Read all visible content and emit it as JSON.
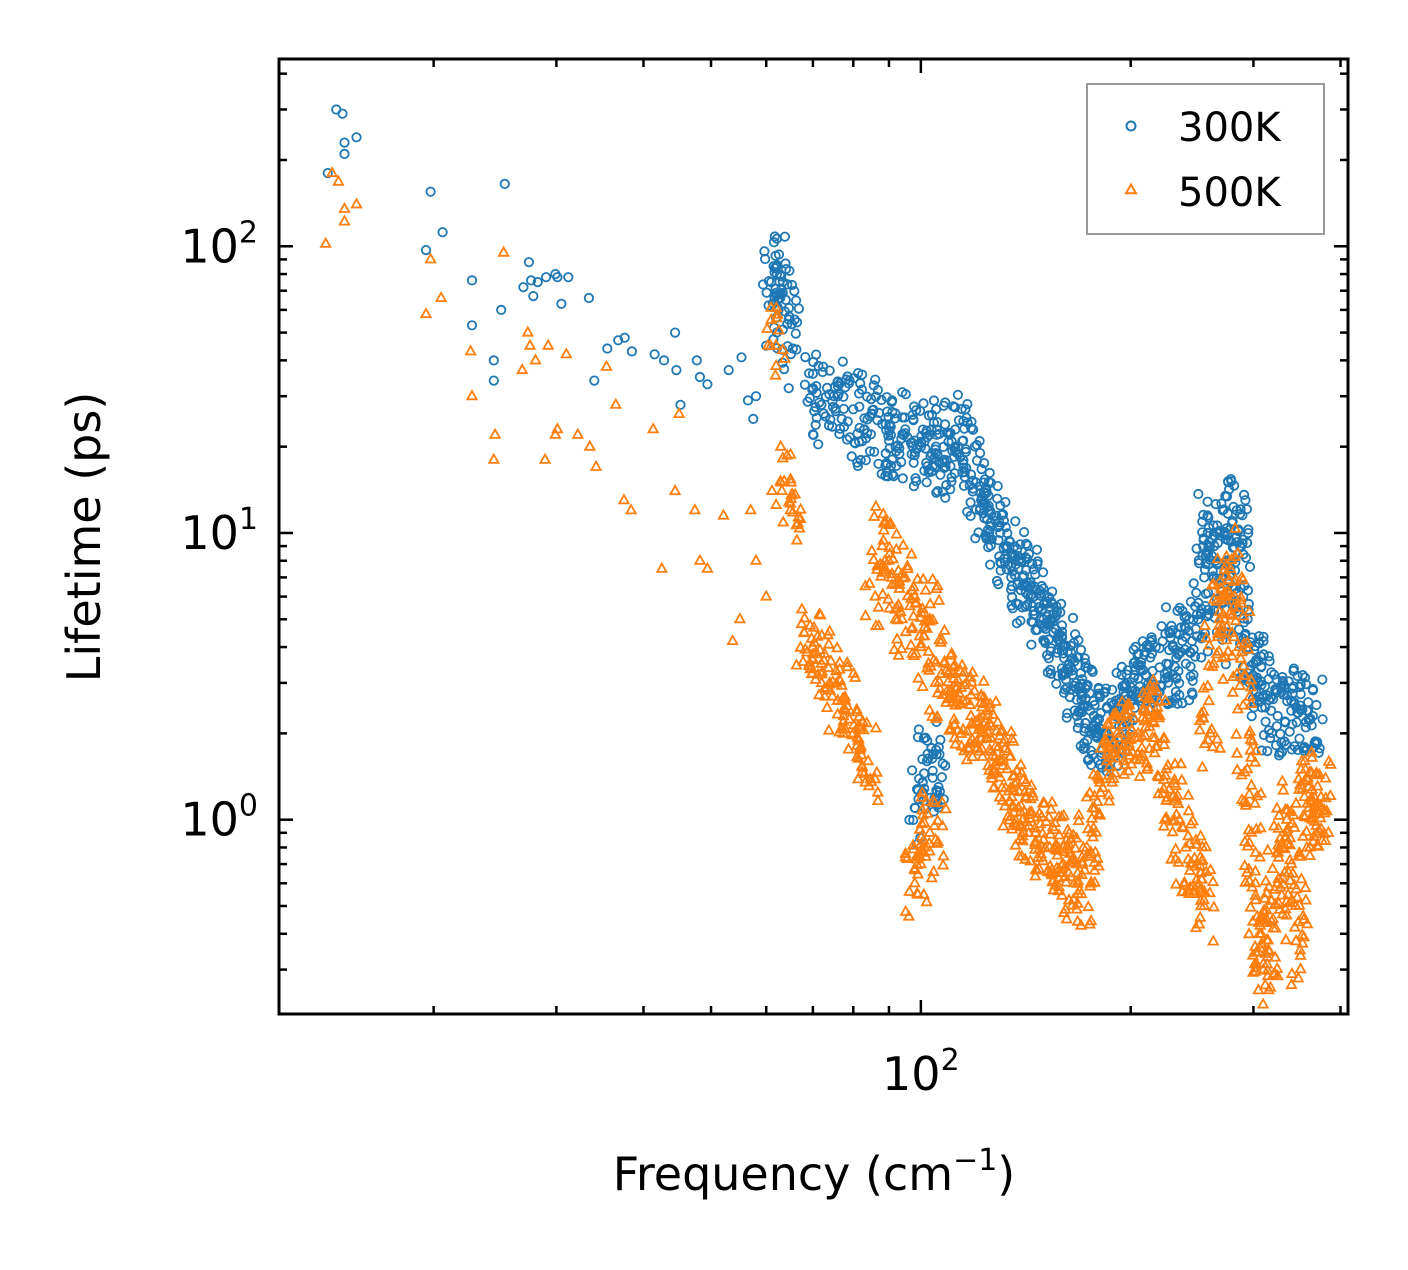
{
  "chart_data": {
    "type": "scatter",
    "xscale": "log",
    "yscale": "log",
    "xlabel": "Frequency (cm",
    "xlabel_exponent": "−1",
    "xlabel_suffix": ")",
    "ylabel": "Lifetime (ps)",
    "xlim": [
      12,
      410
    ],
    "ylim": [
      0.21,
      450
    ],
    "x_major_ticks": [
      {
        "value": 100,
        "base": "10",
        "exp": "2"
      }
    ],
    "y_major_ticks": [
      {
        "value": 1,
        "base": "10",
        "exp": "0"
      },
      {
        "value": 10,
        "base": "10",
        "exp": "1"
      },
      {
        "value": 100,
        "base": "10",
        "exp": "2"
      }
    ],
    "legend_position": "top-right",
    "series": [
      {
        "name": "300K",
        "color": "#1f77b4",
        "marker": "circle",
        "sample_points": [
          [
            14.1,
            180
          ],
          [
            14.5,
            300
          ],
          [
            14.8,
            290
          ],
          [
            14.9,
            230
          ],
          [
            14.9,
            210
          ],
          [
            15.5,
            240
          ],
          [
            19.5,
            97
          ],
          [
            19.8,
            155
          ],
          [
            20.6,
            112
          ],
          [
            22.7,
            76
          ],
          [
            22.7,
            53
          ],
          [
            24.4,
            40
          ],
          [
            24.4,
            34
          ],
          [
            25,
            60
          ],
          [
            25.3,
            165
          ],
          [
            26.9,
            72
          ],
          [
            27.4,
            88
          ],
          [
            27.6,
            76
          ],
          [
            27.8,
            67
          ],
          [
            28.2,
            75
          ],
          [
            29,
            78
          ],
          [
            29.9,
            80
          ],
          [
            30.1,
            78
          ],
          [
            30.5,
            63
          ],
          [
            31.2,
            78
          ],
          [
            33.4,
            66
          ],
          [
            34,
            34
          ],
          [
            35.5,
            44
          ],
          [
            36.8,
            47
          ],
          [
            37.6,
            48
          ],
          [
            38.5,
            43
          ],
          [
            41.5,
            42
          ],
          [
            42.8,
            40
          ],
          [
            44.4,
            50
          ],
          [
            44.6,
            37
          ],
          [
            45.2,
            28
          ],
          [
            47.7,
            40
          ],
          [
            48.2,
            35
          ],
          [
            49.4,
            33
          ],
          [
            53,
            37
          ],
          [
            55.3,
            41
          ],
          [
            56.5,
            29
          ],
          [
            57.5,
            25
          ],
          [
            58,
            30
          ],
          [
            60,
            45
          ],
          [
            61,
            75
          ],
          [
            62,
            85
          ],
          [
            62.5,
            60
          ],
          [
            64,
            65
          ],
          [
            65.5,
            44
          ],
          [
            70,
            32
          ],
          [
            72,
            28
          ],
          [
            75,
            30
          ],
          [
            77,
            25
          ],
          [
            80,
            27
          ],
          [
            83,
            23
          ],
          [
            85,
            26
          ],
          [
            88,
            24
          ],
          [
            90,
            21
          ],
          [
            92,
            20
          ],
          [
            95,
            23
          ],
          [
            98,
            21
          ],
          [
            100,
            20
          ],
          [
            103,
            22
          ],
          [
            105,
            19
          ],
          [
            108,
            18
          ],
          [
            110,
            22
          ],
          [
            112,
            20
          ],
          [
            115,
            21
          ],
          [
            118,
            16
          ],
          [
            120,
            15
          ],
          [
            122,
            13
          ],
          [
            125,
            12
          ],
          [
            128,
            11
          ],
          [
            130,
            10
          ],
          [
            133,
            9
          ],
          [
            135,
            8.5
          ],
          [
            138,
            7.5
          ],
          [
            140,
            7
          ],
          [
            142,
            6.5
          ],
          [
            145,
            6
          ],
          [
            148,
            5.5
          ],
          [
            150,
            5
          ],
          [
            153,
            4.8
          ],
          [
            155,
            4.5
          ],
          [
            158,
            4.2
          ],
          [
            160,
            3.8
          ],
          [
            163,
            3.5
          ],
          [
            165,
            3.2
          ],
          [
            167,
            3
          ],
          [
            170,
            2.8
          ],
          [
            172,
            2.5
          ],
          [
            175,
            2.4
          ],
          [
            178,
            2.2
          ],
          [
            180,
            2.1
          ],
          [
            183,
            2
          ],
          [
            186,
            1.9
          ],
          [
            190,
            2.3
          ],
          [
            193,
            2.5
          ],
          [
            196,
            2.7
          ],
          [
            200,
            2.9
          ],
          [
            205,
            3.1
          ],
          [
            210,
            3.2
          ],
          [
            215,
            3.3
          ],
          [
            220,
            3.4
          ],
          [
            225,
            3.5
          ],
          [
            230,
            4
          ],
          [
            235,
            3.8
          ],
          [
            240,
            3.5
          ],
          [
            245,
            4.2
          ],
          [
            250,
            5
          ],
          [
            255,
            7
          ],
          [
            258,
            10
          ],
          [
            262,
            9.5
          ],
          [
            265,
            8
          ],
          [
            270,
            6
          ],
          [
            275,
            4.5
          ],
          [
            278,
            8
          ],
          [
            280,
            11
          ],
          [
            284,
            12
          ],
          [
            287,
            9
          ],
          [
            290,
            6
          ],
          [
            295,
            4
          ],
          [
            300,
            3.5
          ],
          [
            305,
            3
          ],
          [
            310,
            2.7
          ],
          [
            318,
            2.4
          ],
          [
            325,
            2.3
          ],
          [
            333,
            2.2
          ],
          [
            340,
            2.4
          ],
          [
            350,
            2.5
          ],
          [
            358,
            2.4
          ],
          [
            365,
            2.3
          ],
          [
            98,
            1.1
          ],
          [
            102,
            1.6
          ],
          [
            104,
            1.4
          ],
          [
            106,
            1.3
          ]
        ]
      },
      {
        "name": "500K",
        "color": "#ff7f0e",
        "marker": "triangle",
        "sample_points": [
          [
            14,
            102
          ],
          [
            14.3,
            180
          ],
          [
            14.6,
            168
          ],
          [
            14.9,
            135
          ],
          [
            14.9,
            122
          ],
          [
            15.5,
            140
          ],
          [
            19.5,
            58
          ],
          [
            19.8,
            90
          ],
          [
            20.5,
            66
          ],
          [
            22.6,
            43
          ],
          [
            22.7,
            30
          ],
          [
            24.4,
            18
          ],
          [
            24.5,
            22
          ],
          [
            25.2,
            95
          ],
          [
            26.8,
            37
          ],
          [
            27.3,
            50
          ],
          [
            27.5,
            45
          ],
          [
            28,
            40
          ],
          [
            28.9,
            18
          ],
          [
            29.2,
            45
          ],
          [
            29.9,
            22
          ],
          [
            30.1,
            23
          ],
          [
            31,
            42
          ],
          [
            32.2,
            22
          ],
          [
            33.5,
            20
          ],
          [
            34.2,
            17
          ],
          [
            35.4,
            38
          ],
          [
            36.5,
            28
          ],
          [
            37.5,
            13
          ],
          [
            38.4,
            12
          ],
          [
            41.3,
            23
          ],
          [
            42.5,
            7.5
          ],
          [
            44.4,
            14
          ],
          [
            45,
            26
          ],
          [
            47.4,
            12
          ],
          [
            48.2,
            8
          ],
          [
            49.4,
            7.5
          ],
          [
            52.1,
            11.5
          ],
          [
            53.7,
            4.2
          ],
          [
            55,
            5
          ],
          [
            57,
            12
          ],
          [
            58,
            8
          ],
          [
            60,
            6
          ],
          [
            62,
            45
          ],
          [
            63,
            15
          ],
          [
            65,
            12
          ],
          [
            68,
            4.5
          ],
          [
            70,
            4
          ],
          [
            72,
            3.5
          ],
          [
            74,
            3
          ],
          [
            76,
            2.6
          ],
          [
            78,
            2.4
          ],
          [
            80,
            2
          ],
          [
            82,
            1.8
          ],
          [
            84,
            1.6
          ],
          [
            86,
            6
          ],
          [
            88,
            9
          ],
          [
            90,
            8
          ],
          [
            92,
            5
          ],
          [
            95,
            7
          ],
          [
            98,
            6
          ],
          [
            100,
            4
          ],
          [
            103,
            5
          ],
          [
            105,
            3
          ],
          [
            108,
            3.5
          ],
          [
            110,
            2.8
          ],
          [
            112,
            2.5
          ],
          [
            115,
            2.6
          ],
          [
            118,
            2.3
          ],
          [
            120,
            2.2
          ],
          [
            122,
            2.1
          ],
          [
            125,
            2
          ],
          [
            128,
            1.8
          ],
          [
            130,
            1.6
          ],
          [
            133,
            1.5
          ],
          [
            135,
            1.2
          ],
          [
            138,
            1.1
          ],
          [
            140,
            1
          ],
          [
            143,
            0.95
          ],
          [
            146,
            0.9
          ],
          [
            150,
            0.85
          ],
          [
            153,
            0.8
          ],
          [
            157,
            0.75
          ],
          [
            160,
            0.7
          ],
          [
            163,
            0.65
          ],
          [
            166,
            0.6
          ],
          [
            170,
            0.55
          ],
          [
            173,
            0.8
          ],
          [
            176,
            0.9
          ],
          [
            180,
            1.4
          ],
          [
            185,
            1.6
          ],
          [
            190,
            1.7
          ],
          [
            195,
            1.8
          ],
          [
            200,
            1.9
          ],
          [
            205,
            2
          ],
          [
            210,
            2.1
          ],
          [
            215,
            2.2
          ],
          [
            220,
            2.3
          ],
          [
            225,
            1.5
          ],
          [
            230,
            1.2
          ],
          [
            235,
            1
          ],
          [
            240,
            0.8
          ],
          [
            245,
            0.7
          ],
          [
            250,
            0.6
          ],
          [
            255,
            0.5
          ],
          [
            260,
            2
          ],
          [
            263,
            3.5
          ],
          [
            268,
            5
          ],
          [
            272,
            6
          ],
          [
            278,
            7.5
          ],
          [
            282,
            6
          ],
          [
            286,
            4
          ],
          [
            290,
            2.5
          ],
          [
            294,
            1.5
          ],
          [
            298,
            0.9
          ],
          [
            302,
            0.6
          ],
          [
            306,
            0.4
          ],
          [
            310,
            0.3
          ],
          [
            315,
            0.35
          ],
          [
            320,
            0.45
          ],
          [
            325,
            0.6
          ],
          [
            330,
            0.8
          ],
          [
            335,
            1
          ],
          [
            340,
            0.7
          ],
          [
            345,
            0.5
          ],
          [
            350,
            0.35
          ],
          [
            355,
            1.2
          ],
          [
            360,
            1.3
          ],
          [
            365,
            1
          ],
          [
            370,
            1.1
          ],
          [
            375,
            1.2
          ],
          [
            98,
            0.6
          ],
          [
            100,
            0.7
          ],
          [
            103,
            0.9
          ],
          [
            105,
            0.85
          ]
        ]
      }
    ]
  }
}
